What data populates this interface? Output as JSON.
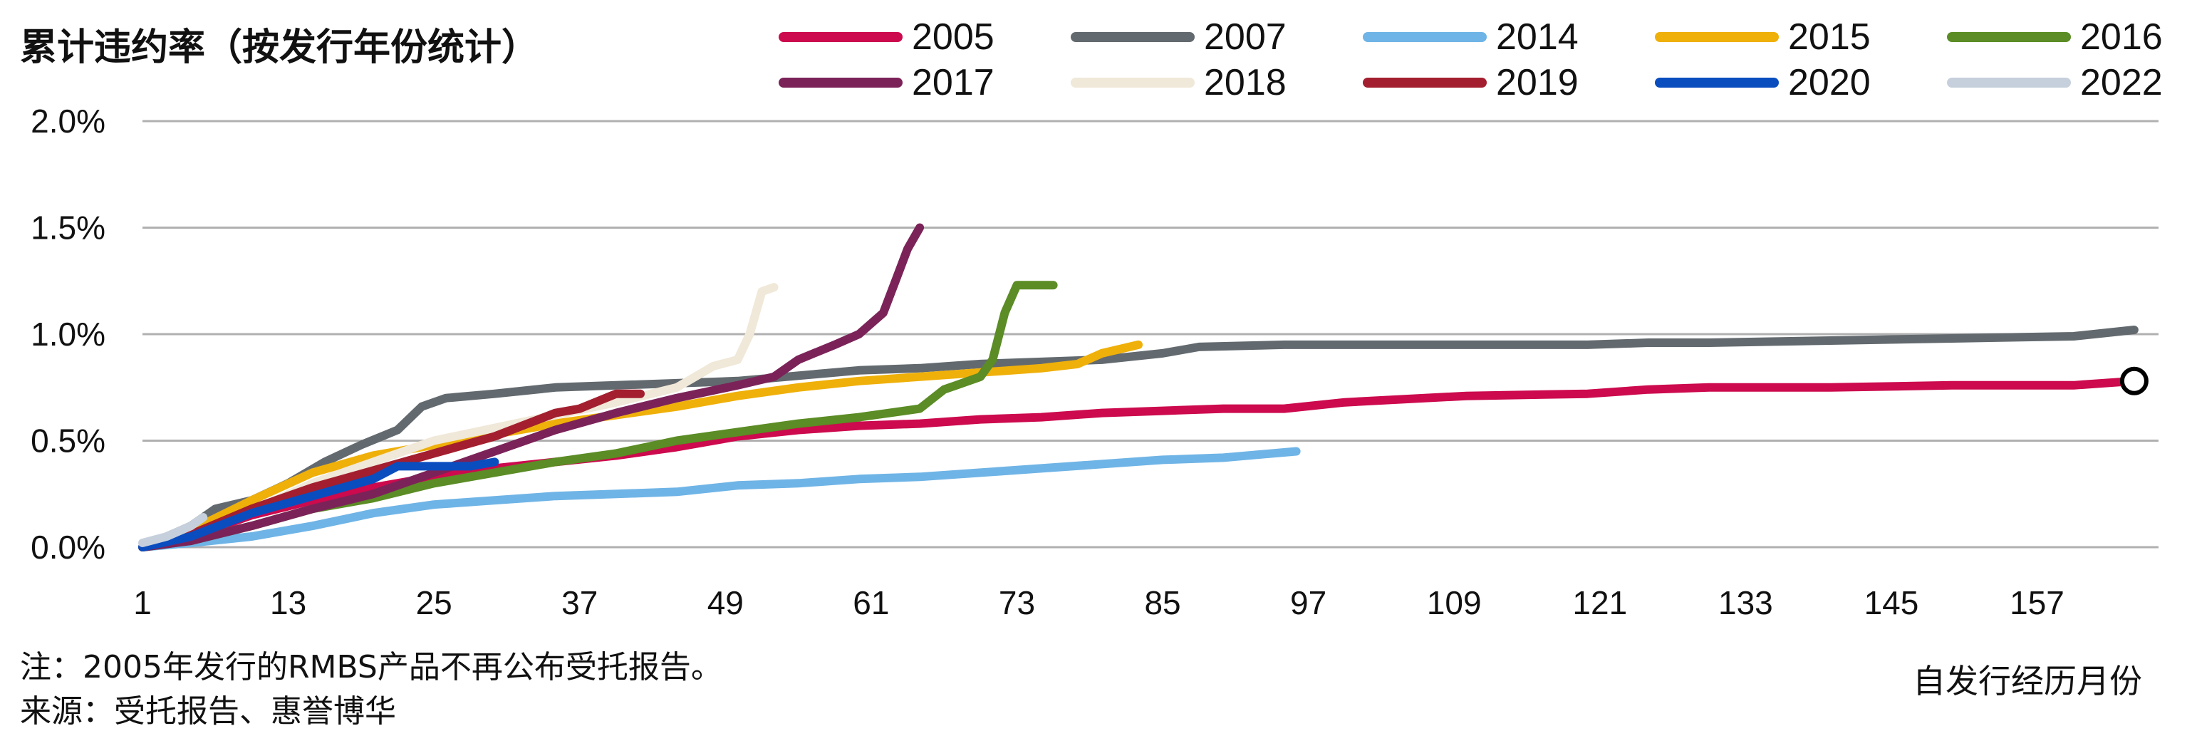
{
  "header": {
    "title": "累计违约率（按发行年份统计）"
  },
  "notes": {
    "note": "注：2005年发行的RMBS产品不再公布受托报告。",
    "source": "来源：受托报告、惠誉博华"
  },
  "chart_data": {
    "type": "line",
    "title": "累计违约率（按发行年份统计）",
    "xlabel": "自发行经历月份",
    "ylabel": "",
    "xlim": [
      1,
      167
    ],
    "ylim": [
      0,
      2.0
    ],
    "xticks": [
      "1",
      "13",
      "25",
      "37",
      "49",
      "61",
      "73",
      "85",
      "97",
      "109",
      "121",
      "133",
      "145",
      "157"
    ],
    "yticks": [
      "0.0%",
      "0.5%",
      "1.0%",
      "1.5%",
      "2.0%"
    ],
    "grid": true,
    "legend_position": "top",
    "series": [
      {
        "name": "2005",
        "color": "#cc0a4d",
        "x": [
          1,
          5,
          10,
          15,
          20,
          25,
          30,
          35,
          40,
          45,
          50,
          55,
          60,
          65,
          70,
          75,
          80,
          85,
          90,
          95,
          100,
          110,
          120,
          125,
          130,
          135,
          140,
          150,
          160,
          165
        ],
        "values": [
          0.0,
          0.05,
          0.15,
          0.22,
          0.28,
          0.33,
          0.37,
          0.4,
          0.43,
          0.47,
          0.52,
          0.55,
          0.57,
          0.58,
          0.6,
          0.61,
          0.63,
          0.64,
          0.65,
          0.65,
          0.68,
          0.71,
          0.72,
          0.74,
          0.75,
          0.75,
          0.75,
          0.76,
          0.76,
          0.78
        ]
      },
      {
        "name": "2007",
        "color": "#636a6f",
        "x": [
          1,
          5,
          7,
          10,
          13,
          16,
          19,
          22,
          24,
          26,
          30,
          35,
          40,
          50,
          60,
          65,
          70,
          75,
          80,
          85,
          88,
          95,
          100,
          110,
          120,
          125,
          130,
          140,
          150,
          160,
          165
        ],
        "values": [
          0.0,
          0.1,
          0.18,
          0.22,
          0.3,
          0.4,
          0.48,
          0.55,
          0.66,
          0.7,
          0.72,
          0.75,
          0.76,
          0.78,
          0.83,
          0.84,
          0.86,
          0.87,
          0.88,
          0.91,
          0.94,
          0.95,
          0.95,
          0.95,
          0.95,
          0.96,
          0.96,
          0.97,
          0.98,
          0.99,
          1.02
        ]
      },
      {
        "name": "2014",
        "color": "#6fb4e6",
        "x": [
          1,
          5,
          10,
          15,
          20,
          25,
          30,
          35,
          40,
          45,
          50,
          55,
          60,
          65,
          70,
          75,
          80,
          85,
          90,
          96
        ],
        "values": [
          0.0,
          0.02,
          0.05,
          0.1,
          0.16,
          0.2,
          0.22,
          0.24,
          0.25,
          0.26,
          0.29,
          0.3,
          0.32,
          0.33,
          0.35,
          0.37,
          0.39,
          0.41,
          0.42,
          0.45
        ]
      },
      {
        "name": "2015",
        "color": "#efb00a",
        "x": [
          1,
          5,
          10,
          15,
          20,
          25,
          30,
          35,
          40,
          45,
          50,
          55,
          60,
          65,
          70,
          75,
          78,
          80,
          83
        ],
        "values": [
          0.0,
          0.08,
          0.22,
          0.35,
          0.43,
          0.48,
          0.53,
          0.58,
          0.62,
          0.66,
          0.71,
          0.75,
          0.78,
          0.8,
          0.82,
          0.84,
          0.86,
          0.91,
          0.95
        ]
      },
      {
        "name": "2016",
        "color": "#5b8c25",
        "x": [
          1,
          5,
          10,
          15,
          20,
          25,
          30,
          35,
          40,
          45,
          50,
          55,
          60,
          65,
          67,
          68,
          70,
          71,
          72,
          73,
          76
        ],
        "values": [
          0.0,
          0.03,
          0.1,
          0.18,
          0.23,
          0.3,
          0.35,
          0.4,
          0.44,
          0.5,
          0.54,
          0.58,
          0.61,
          0.65,
          0.74,
          0.76,
          0.8,
          0.88,
          1.1,
          1.23,
          1.23
        ]
      },
      {
        "name": "2017",
        "color": "#7b2359",
        "x": [
          1,
          5,
          10,
          15,
          20,
          25,
          30,
          35,
          40,
          45,
          50,
          53,
          55,
          58,
          60,
          62,
          63,
          64,
          65
        ],
        "values": [
          0.0,
          0.03,
          0.1,
          0.18,
          0.25,
          0.35,
          0.45,
          0.55,
          0.63,
          0.7,
          0.76,
          0.8,
          0.88,
          0.95,
          1.0,
          1.1,
          1.25,
          1.4,
          1.5
        ]
      },
      {
        "name": "2018",
        "color": "#f0e8d8",
        "x": [
          1,
          5,
          10,
          15,
          20,
          25,
          30,
          35,
          40,
          45,
          48,
          50,
          51,
          52,
          53
        ],
        "values": [
          0.0,
          0.06,
          0.17,
          0.3,
          0.4,
          0.5,
          0.56,
          0.62,
          0.68,
          0.75,
          0.85,
          0.88,
          1.0,
          1.2,
          1.22
        ]
      },
      {
        "name": "2019",
        "color": "#a31f2f",
        "x": [
          1,
          5,
          10,
          15,
          20,
          25,
          30,
          35,
          37,
          40,
          42
        ],
        "values": [
          0.0,
          0.06,
          0.18,
          0.28,
          0.36,
          0.44,
          0.52,
          0.63,
          0.65,
          0.72,
          0.72
        ]
      },
      {
        "name": "2020",
        "color": "#0a4dbf",
        "x": [
          1,
          5,
          10,
          15,
          20,
          22,
          24,
          26,
          28,
          30
        ],
        "values": [
          0.0,
          0.05,
          0.16,
          0.24,
          0.32,
          0.38,
          0.38,
          0.38,
          0.38,
          0.4
        ]
      },
      {
        "name": "2022",
        "color": "#c6d0dc",
        "x": [
          1,
          3,
          5,
          6
        ],
        "values": [
          0.02,
          0.05,
          0.1,
          0.14
        ]
      }
    ],
    "annotations": [
      {
        "type": "circle-marker",
        "series": "2005",
        "x": 165,
        "y": 0.78
      }
    ]
  }
}
